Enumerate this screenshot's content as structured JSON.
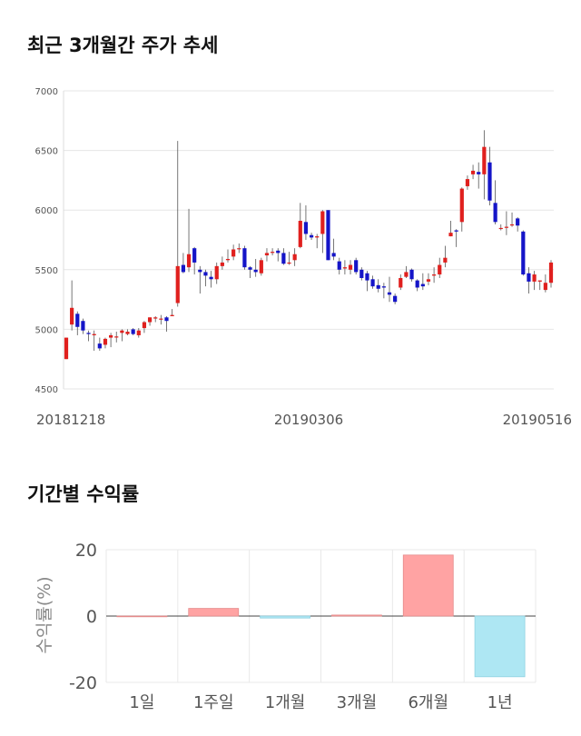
{
  "sections": {
    "price_title": "최근 3개월간 주가 추세",
    "returns_title": "기간별 수익률"
  },
  "colors": {
    "up": "#e0201e",
    "down": "#1515c8",
    "wick": "#555555",
    "bar_positive": "#ffa3a3",
    "bar_negative": "#aee7f3"
  },
  "chart_data": [
    {
      "type": "candlestick",
      "title": "최근 3개월간 주가 추세",
      "ylim": [
        4500,
        7000
      ],
      "y_ticks": [
        4500,
        5000,
        5500,
        6000,
        6500,
        7000
      ],
      "x_tick_labels": [
        "20181218",
        "20190306",
        "20190516"
      ],
      "grid": true,
      "ohlc": [
        [
          4750,
          4930,
          4750,
          4930
        ],
        [
          5040,
          5180,
          5410,
          4990
        ],
        [
          5130,
          5020,
          5150,
          4950
        ],
        [
          5070,
          4990,
          5090,
          4960
        ],
        [
          4970,
          4960,
          4990,
          4900
        ],
        [
          4950,
          4960,
          4990,
          4820
        ],
        [
          4880,
          4840,
          4930,
          4820
        ],
        [
          4870,
          4920,
          4930,
          4840
        ],
        [
          4930,
          4950,
          4970,
          4850
        ],
        [
          4940,
          4940,
          4980,
          4890
        ],
        [
          4970,
          4990,
          5000,
          4900
        ],
        [
          4960,
          4980,
          5000,
          4950
        ],
        [
          5000,
          4960,
          5010,
          4950
        ],
        [
          4950,
          4990,
          5010,
          4930
        ],
        [
          5010,
          5060,
          5070,
          4970
        ],
        [
          5060,
          5100,
          5100,
          5030
        ],
        [
          5090,
          5100,
          5110,
          5060
        ],
        [
          5090,
          5090,
          5120,
          5040
        ],
        [
          5100,
          5070,
          5110,
          4980
        ],
        [
          5110,
          5120,
          5170,
          5110
        ],
        [
          5220,
          5530,
          6580,
          5190
        ],
        [
          5540,
          5480,
          5640,
          5470
        ],
        [
          5520,
          5630,
          6010,
          5480
        ],
        [
          5680,
          5560,
          5690,
          5460
        ],
        [
          5500,
          5480,
          5530,
          5300
        ],
        [
          5480,
          5450,
          5500,
          5360
        ],
        [
          5440,
          5420,
          5490,
          5350
        ],
        [
          5420,
          5530,
          5560,
          5380
        ],
        [
          5530,
          5560,
          5610,
          5500
        ],
        [
          5580,
          5590,
          5670,
          5560
        ],
        [
          5610,
          5670,
          5710,
          5580
        ],
        [
          5680,
          5680,
          5720,
          5640
        ],
        [
          5680,
          5520,
          5700,
          5500
        ],
        [
          5520,
          5500,
          5530,
          5430
        ],
        [
          5500,
          5480,
          5590,
          5440
        ],
        [
          5470,
          5580,
          5600,
          5450
        ],
        [
          5620,
          5640,
          5680,
          5570
        ],
        [
          5650,
          5650,
          5680,
          5620
        ],
        [
          5660,
          5640,
          5680,
          5570
        ],
        [
          5640,
          5550,
          5680,
          5540
        ],
        [
          5560,
          5560,
          5650,
          5540
        ],
        [
          5580,
          5630,
          5680,
          5530
        ],
        [
          5690,
          5910,
          6060,
          5680
        ],
        [
          5900,
          5800,
          6040,
          5750
        ],
        [
          5790,
          5770,
          5810,
          5750
        ],
        [
          5770,
          5780,
          5800,
          5680
        ],
        [
          5800,
          5990,
          6000,
          5640
        ],
        [
          6000,
          5580,
          5990,
          5580
        ],
        [
          5640,
          5610,
          5760,
          5580
        ],
        [
          5570,
          5500,
          5600,
          5460
        ],
        [
          5510,
          5520,
          5580,
          5460
        ],
        [
          5500,
          5540,
          5580,
          5460
        ],
        [
          5580,
          5480,
          5600,
          5460
        ],
        [
          5500,
          5430,
          5520,
          5410
        ],
        [
          5470,
          5410,
          5490,
          5320
        ],
        [
          5420,
          5360,
          5450,
          5340
        ],
        [
          5370,
          5340,
          5420,
          5310
        ],
        [
          5360,
          5350,
          5390,
          5260
        ],
        [
          5310,
          5290,
          5440,
          5230
        ],
        [
          5280,
          5230,
          5300,
          5210
        ],
        [
          5350,
          5430,
          5460,
          5330
        ],
        [
          5440,
          5480,
          5530,
          5430
        ],
        [
          5500,
          5420,
          5510,
          5400
        ],
        [
          5410,
          5350,
          5420,
          5320
        ],
        [
          5380,
          5360,
          5470,
          5330
        ],
        [
          5400,
          5420,
          5470,
          5370
        ],
        [
          5450,
          5460,
          5520,
          5390
        ],
        [
          5460,
          5540,
          5600,
          5430
        ],
        [
          5560,
          5600,
          5700,
          5520
        ],
        [
          5780,
          5810,
          5910,
          5780
        ],
        [
          5830,
          5820,
          5840,
          5690
        ],
        [
          5900,
          6180,
          6190,
          5820
        ],
        [
          6200,
          6260,
          6290,
          6170
        ],
        [
          6300,
          6330,
          6380,
          6260
        ],
        [
          6320,
          6300,
          6400,
          6180
        ],
        [
          6300,
          6530,
          6670,
          6090
        ],
        [
          6400,
          6080,
          6530,
          6040
        ],
        [
          6060,
          5900,
          6250,
          5880
        ],
        [
          5850,
          5850,
          5880,
          5830
        ],
        [
          5860,
          5860,
          5990,
          5790
        ],
        [
          5880,
          5880,
          5980,
          5860
        ],
        [
          5930,
          5870,
          5940,
          5820
        ],
        [
          5820,
          5460,
          5830,
          5450
        ],
        [
          5470,
          5400,
          5520,
          5300
        ],
        [
          5400,
          5460,
          5490,
          5330
        ],
        [
          5400,
          5410,
          5410,
          5330
        ],
        [
          5330,
          5390,
          5460,
          5310
        ],
        [
          5390,
          5560,
          5580,
          5350
        ]
      ]
    },
    {
      "type": "bar",
      "title": "기간별 수익률",
      "ylabel": "수익률(%)",
      "categories": [
        "1일",
        "1주일",
        "1개월",
        "3개월",
        "6개월",
        "1년"
      ],
      "values": [
        0.0,
        2.3,
        -0.6,
        0.3,
        18.4,
        -18.3
      ],
      "ylim": [
        -20,
        20
      ],
      "y_ticks": [
        -20,
        0,
        20
      ],
      "grid": true
    }
  ]
}
